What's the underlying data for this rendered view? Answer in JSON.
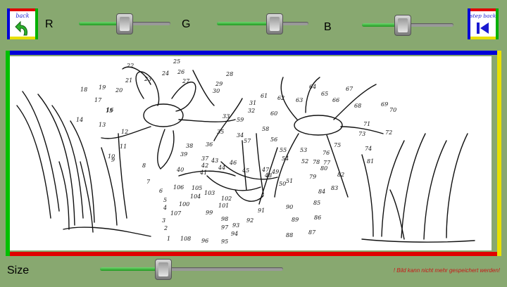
{
  "toolbar": {
    "back_label": "back",
    "back_icon": "undo-arrow-icon",
    "step_back_label": "step back",
    "step_back_icon": "skip-back-icon",
    "r_label": "R",
    "g_label": "G",
    "b_label": "B",
    "r_value": 0.5,
    "g_value": 0.6,
    "b_value": 0.45
  },
  "bottom": {
    "size_label": "Size",
    "size_value": 0.35,
    "warning": "! Bild kann nicht mehr gespeichert werden!"
  },
  "colors": {
    "background": "#88a870",
    "slider_fill": "#2fae2f",
    "frame_top": "#0000d8",
    "frame_left": "#00c000",
    "frame_right": "#e8e000",
    "frame_bottom": "#e00000",
    "warning": "#c81818"
  },
  "canvas": {
    "numbers": [
      "1",
      "2",
      "3",
      "4",
      "5",
      "6",
      "7",
      "8",
      "9",
      "10",
      "11",
      "12",
      "13",
      "14",
      "15",
      "16",
      "17",
      "18",
      "19",
      "20",
      "21",
      "22",
      "23",
      "24",
      "25",
      "26",
      "27",
      "28",
      "29",
      "30",
      "31",
      "32",
      "33",
      "34",
      "35",
      "36",
      "37",
      "38",
      "39",
      "40",
      "41",
      "42",
      "43",
      "44",
      "45",
      "46",
      "47",
      "48",
      "49",
      "50",
      "51",
      "52",
      "53",
      "54",
      "55",
      "56",
      "57",
      "58",
      "59",
      "60",
      "61",
      "62",
      "63",
      "64",
      "65",
      "66",
      "67",
      "68",
      "69",
      "70",
      "71",
      "72",
      "73",
      "74",
      "75",
      "76",
      "77",
      "78",
      "79",
      "80",
      "81",
      "82",
      "83",
      "84",
      "85",
      "86",
      "87",
      "88",
      "89",
      "90",
      "91",
      "92",
      "93",
      "94",
      "95",
      "96",
      "97",
      "98",
      "99",
      "100",
      "101",
      "102",
      "103",
      "104",
      "105",
      "106",
      "107",
      "108"
    ]
  }
}
